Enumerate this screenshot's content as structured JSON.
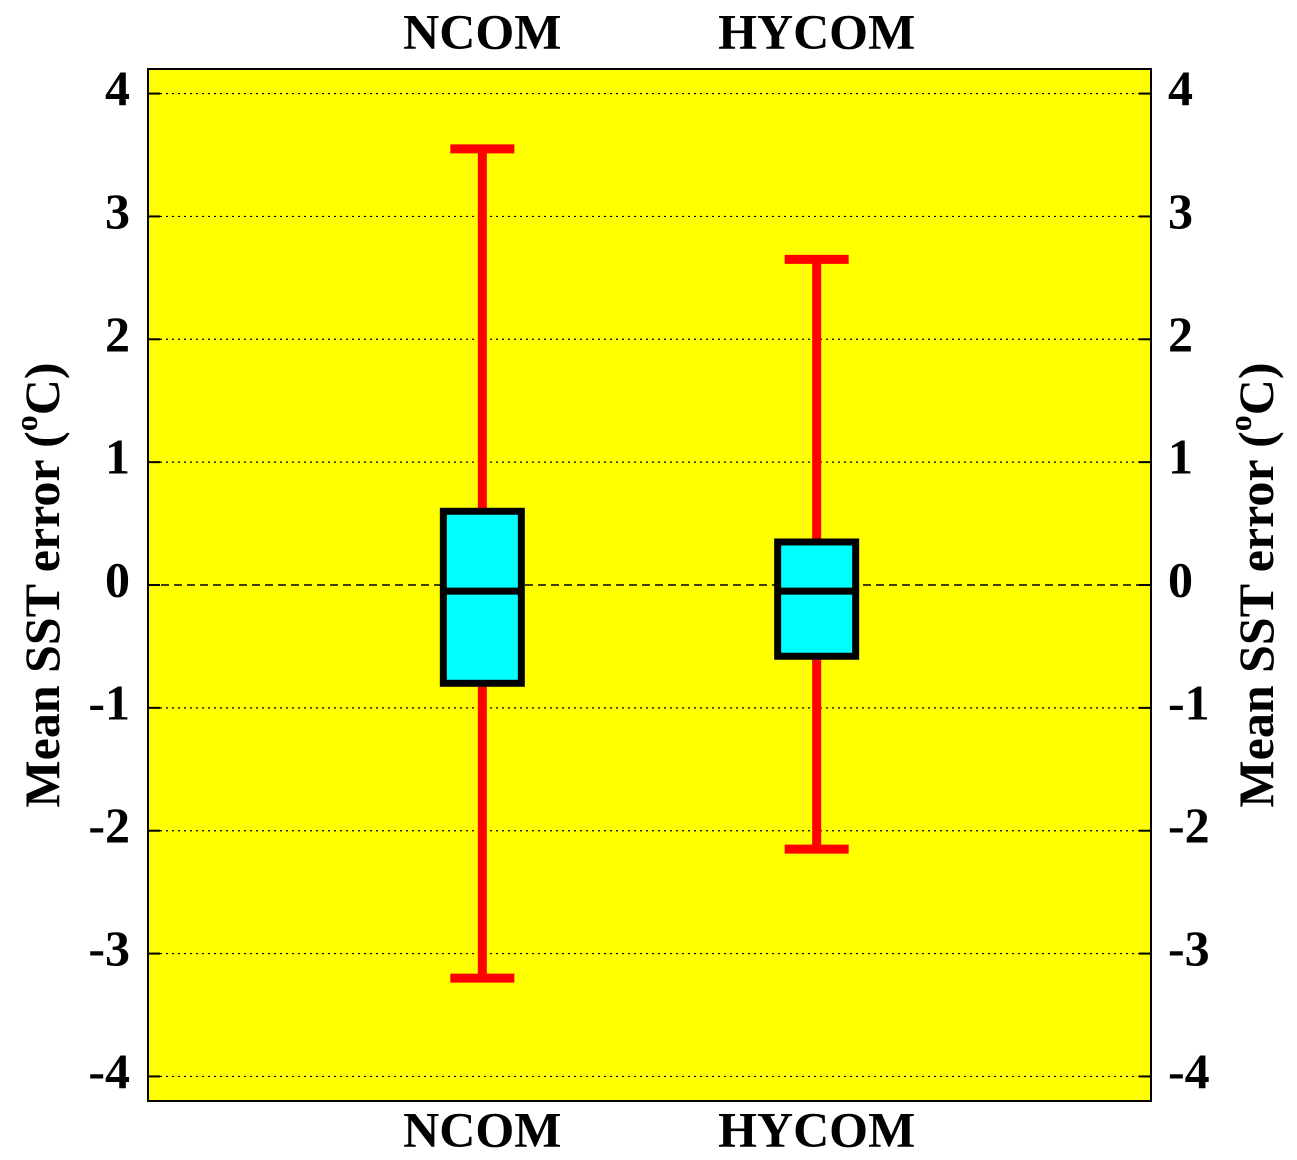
{
  "chart_data": {
    "type": "box",
    "y_label": {
      "before": "Mean SST error (",
      "sup": "o",
      "after": "C)"
    },
    "categories": [
      "NCOM",
      "HYCOM"
    ],
    "boxes": [
      {
        "low": -3.2,
        "q1": -0.8,
        "median": -0.05,
        "q3": 0.6,
        "high": 3.55
      },
      {
        "low": -2.15,
        "q1": -0.58,
        "median": -0.05,
        "q3": 0.35,
        "high": 2.65
      }
    ],
    "box_color": "#00ffff",
    "whisker_color": "#ff0000",
    "background": "#ffff00",
    "ylim": [
      -4.2,
      4.2
    ],
    "yticks": [
      -4,
      -3,
      -2,
      -1,
      0,
      1,
      2,
      3,
      4
    ],
    "y2lim": [
      -4.2,
      4.2
    ],
    "y2ticks": [
      -4,
      -3,
      -2,
      -1,
      0,
      1,
      2,
      3,
      4
    ],
    "grid": true,
    "zero_line": true
  }
}
